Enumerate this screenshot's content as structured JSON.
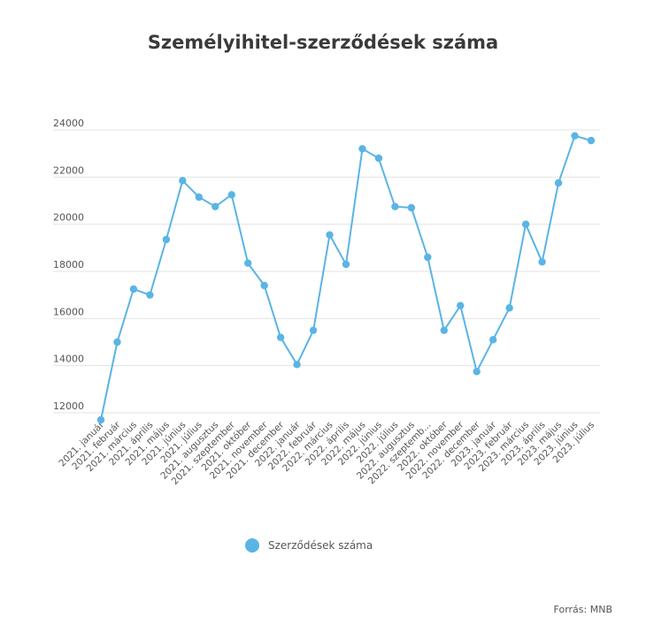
{
  "chart_data": {
    "type": "line",
    "title": "Személyihitel-szerződések száma",
    "categories": [
      "2021. január",
      "2021. február",
      "2021. március",
      "2021. április",
      "2021. május",
      "2021. június",
      "2021. július",
      "2021. augusztus",
      "2021. szeptember",
      "2021. október",
      "2021. november",
      "2021. december",
      "2022. január",
      "2022. február",
      "2022. március",
      "2022. április",
      "2022. május",
      "2022. június",
      "2022. július",
      "2022. augusztus",
      "2022. szeptemb...",
      "2022. október",
      "2022. november",
      "2022. december",
      "2023. január",
      "2023. február",
      "2023. március",
      "2023. április",
      "2023. május",
      "2023. június",
      "2023. július"
    ],
    "series": [
      {
        "name": "Szerződések száma",
        "color": "#5ab4e5",
        "values": [
          11700,
          15000,
          17250,
          17000,
          19350,
          21850,
          21150,
          20750,
          21250,
          18350,
          17400,
          15200,
          14050,
          15500,
          19550,
          18300,
          23200,
          22800,
          20750,
          20700,
          18600,
          15500,
          16550,
          13750,
          15100,
          16450,
          20000,
          18400,
          21750,
          23750,
          23550
        ]
      }
    ],
    "ylim": [
      11000,
      24500
    ],
    "yticks": [
      12000,
      14000,
      16000,
      18000,
      20000,
      22000,
      24000
    ],
    "grid": true,
    "legend_position": "bottom"
  },
  "source_text": "Forrás: MNB",
  "colors": {
    "gridline": "#e3e3e3",
    "axis_text": "#555555"
  }
}
